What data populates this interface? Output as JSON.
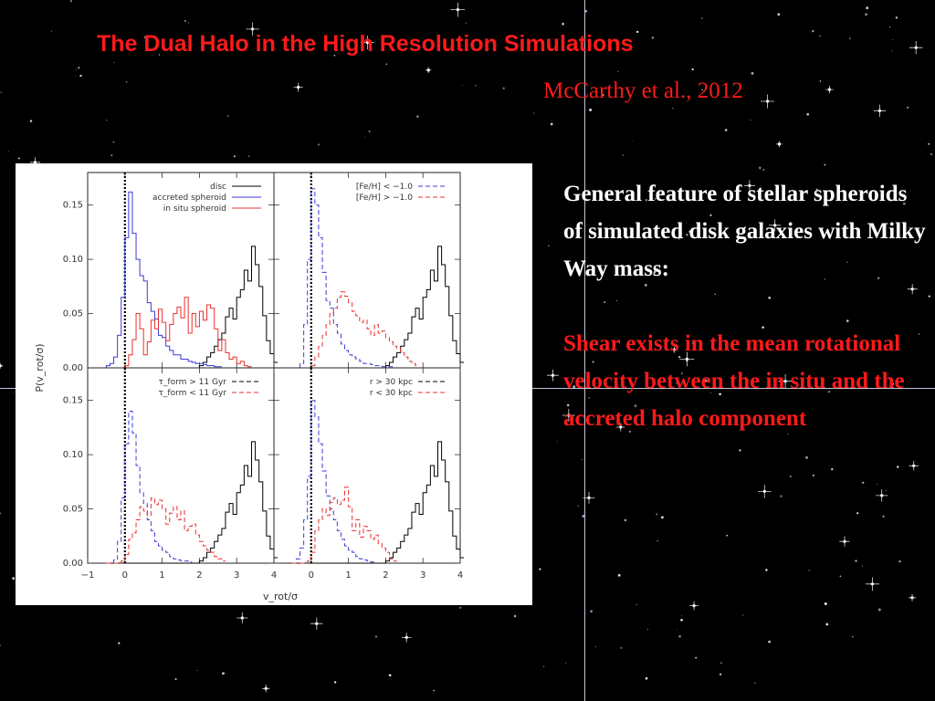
{
  "slide": {
    "title": "The Dual Halo in the High Resolution Simulations",
    "citation": "McCarthy et al., 2012",
    "paragraph1": "General feature of stellar spheroids of simulated disk galaxies with Milky Way mass:",
    "paragraph2": "Shear exists in the mean rotational velocity between the in situ and the accreted halo component"
  },
  "colors": {
    "accent": "#ff1a1a",
    "background": "#000000",
    "black_line": "#000000",
    "blue_line": "#3b3bd6",
    "red_line": "#e83030"
  },
  "chart_data": {
    "type": "histogram",
    "xlabel": "v_rot/σ",
    "ylabel": "P(v_rot/σ)",
    "xlim": [
      -1,
      4
    ],
    "ylim": [
      0,
      0.18
    ],
    "xticks": [
      "−1",
      "0",
      "1",
      "2",
      "3",
      "4"
    ],
    "yticks": [
      "0.00",
      "0.05",
      "0.10",
      "0.15"
    ],
    "bin_width": 0.1,
    "bin_start": -0.5,
    "reference_line_x": 0,
    "panels": [
      {
        "position": "top-left",
        "legend": [
          {
            "name": "disc",
            "style": "solid",
            "color": "black"
          },
          {
            "name": "accreted spheroid",
            "style": "solid",
            "color": "blue"
          },
          {
            "name": "in situ spheroid",
            "style": "solid",
            "color": "red"
          }
        ],
        "series": [
          {
            "name": "disc",
            "style": "solid",
            "color": "black",
            "values": [
              0,
              0,
              0,
              0,
              0,
              0,
              0,
              0,
              0,
              0,
              0,
              0,
              0,
              0,
              0,
              0,
              0,
              0,
              0,
              0,
              0,
              0,
              0,
              0,
              0,
              0.002,
              0.005,
              0.01,
              0.014,
              0.02,
              0.026,
              0.032,
              0.047,
              0.055,
              0.045,
              0.065,
              0.072,
              0.09,
              0.08,
              0.112,
              0.095,
              0.075,
              0.048,
              0.025,
              0.013,
              0.005
            ]
          },
          {
            "name": "accreted spheroid",
            "style": "solid",
            "color": "blue",
            "values": [
              0.002,
              0.004,
              0.01,
              0.03,
              0.065,
              0.12,
              0.162,
              0.124,
              0.1,
              0.085,
              0.08,
              0.06,
              0.052,
              0.045,
              0.03,
              0.028,
              0.02,
              0.016,
              0.012,
              0.012,
              0.008,
              0.008,
              0.006,
              0.005,
              0.004,
              0.004,
              0.003,
              0.002,
              0.002,
              0.001,
              0.001
            ]
          },
          {
            "name": "in situ spheroid",
            "style": "solid",
            "color": "red",
            "values": [
              0,
              0,
              0,
              0,
              0,
              0.002,
              0.012,
              0.026,
              0.05,
              0.036,
              0.012,
              0.024,
              0.044,
              0.036,
              0.054,
              0.042,
              0.025,
              0.04,
              0.05,
              0.056,
              0.046,
              0.065,
              0.032,
              0.05,
              0.038,
              0.052,
              0.044,
              0.058,
              0.055,
              0.036,
              0.016,
              0.026,
              0.014,
              0.008,
              0.01,
              0.004,
              0.006,
              0.002,
              0.001
            ]
          }
        ]
      },
      {
        "position": "top-right",
        "legend": [
          {
            "name": "[Fe/H] < −1.0",
            "style": "dashed",
            "color": "blue"
          },
          {
            "name": "[Fe/H] > −1.0",
            "style": "dashed",
            "color": "red"
          }
        ],
        "series": [
          {
            "name": "disc",
            "style": "solid",
            "color": "black",
            "values": [
              0,
              0,
              0,
              0,
              0,
              0,
              0,
              0,
              0,
              0,
              0,
              0,
              0,
              0,
              0,
              0,
              0,
              0,
              0,
              0,
              0,
              0,
              0,
              0,
              0,
              0.002,
              0.005,
              0.01,
              0.014,
              0.02,
              0.026,
              0.032,
              0.047,
              0.055,
              0.045,
              0.065,
              0.072,
              0.09,
              0.08,
              0.112,
              0.095,
              0.075,
              0.048,
              0.025,
              0.013,
              0.005
            ]
          },
          {
            "name": "[Fe/H] < −1.0",
            "style": "dashed",
            "color": "blue",
            "values": [
              0,
              0,
              0.004,
              0.04,
              0.1,
              0.165,
              0.15,
              0.12,
              0.088,
              0.062,
              0.055,
              0.04,
              0.032,
              0.022,
              0.016,
              0.012,
              0.01,
              0.008,
              0.006,
              0.004,
              0.004,
              0.003,
              0.002,
              0.002,
              0.001,
              0.001,
              0.001
            ]
          },
          {
            "name": "[Fe/H] > −1.0",
            "style": "dashed",
            "color": "red",
            "values": [
              0,
              0,
              0,
              0,
              0,
              0.002,
              0.01,
              0.02,
              0.03,
              0.04,
              0.05,
              0.055,
              0.065,
              0.07,
              0.066,
              0.06,
              0.052,
              0.048,
              0.042,
              0.044,
              0.036,
              0.03,
              0.04,
              0.032,
              0.034,
              0.028,
              0.024,
              0.02,
              0.018,
              0.014,
              0.01,
              0.006,
              0.004,
              0.002
            ]
          }
        ]
      },
      {
        "position": "bottom-left",
        "legend": [
          {
            "name": "τ_form > 11 Gyr",
            "style": "dashed",
            "color": "black"
          },
          {
            "name": "τ_form < 11 Gyr",
            "style": "dashed",
            "color": "red"
          }
        ],
        "series": [
          {
            "name": "disc",
            "style": "solid",
            "color": "black",
            "values": [
              0,
              0,
              0,
              0,
              0,
              0,
              0,
              0,
              0,
              0,
              0,
              0,
              0,
              0,
              0,
              0,
              0,
              0,
              0,
              0,
              0,
              0,
              0,
              0,
              0,
              0.002,
              0.005,
              0.01,
              0.014,
              0.02,
              0.026,
              0.032,
              0.047,
              0.055,
              0.045,
              0.065,
              0.072,
              0.09,
              0.08,
              0.112,
              0.095,
              0.075,
              0.048,
              0.025,
              0.013,
              0.005
            ]
          },
          {
            "name": "τ_form > 11 Gyr",
            "style": "dashed",
            "color": "blue",
            "values": [
              0,
              0,
              0.003,
              0.02,
              0.06,
              0.11,
              0.14,
              0.12,
              0.09,
              0.065,
              0.055,
              0.04,
              0.03,
              0.02,
              0.016,
              0.012,
              0.01,
              0.006,
              0.004,
              0.003,
              0.002,
              0.002,
              0.001
            ]
          },
          {
            "name": "τ_form < 11 Gyr",
            "style": "dashed",
            "color": "red",
            "values": [
              0,
              0,
              0,
              0,
              0.002,
              0.008,
              0.022,
              0.028,
              0.04,
              0.052,
              0.048,
              0.044,
              0.06,
              0.054,
              0.058,
              0.05,
              0.036,
              0.046,
              0.052,
              0.04,
              0.048,
              0.03,
              0.034,
              0.036,
              0.026,
              0.02,
              0.016,
              0.012,
              0.01,
              0.006,
              0.004,
              0.002
            ]
          }
        ]
      },
      {
        "position": "bottom-right",
        "legend": [
          {
            "name": "r > 30 kpc",
            "style": "dashed",
            "color": "black"
          },
          {
            "name": "r < 30 kpc",
            "style": "dashed",
            "color": "red"
          }
        ],
        "series": [
          {
            "name": "disc",
            "style": "solid",
            "color": "black",
            "values": [
              0,
              0,
              0,
              0,
              0,
              0,
              0,
              0,
              0,
              0,
              0,
              0,
              0,
              0,
              0,
              0,
              0,
              0,
              0,
              0,
              0,
              0,
              0,
              0,
              0,
              0.002,
              0.005,
              0.01,
              0.014,
              0.02,
              0.026,
              0.032,
              0.047,
              0.055,
              0.045,
              0.065,
              0.072,
              0.09,
              0.08,
              0.112,
              0.095,
              0.075,
              0.048,
              0.025,
              0.013,
              0.005
            ]
          },
          {
            "name": "r > 30 kpc",
            "style": "dashed",
            "color": "blue",
            "values": [
              0,
              0.004,
              0.014,
              0.04,
              0.08,
              0.15,
              0.135,
              0.11,
              0.085,
              0.062,
              0.05,
              0.04,
              0.03,
              0.022,
              0.016,
              0.012,
              0.01,
              0.006,
              0.004,
              0.003,
              0.002,
              0.001
            ]
          },
          {
            "name": "r < 30 kpc",
            "style": "dashed",
            "color": "red",
            "values": [
              0,
              0,
              0,
              0,
              0.002,
              0.01,
              0.03,
              0.04,
              0.05,
              0.044,
              0.056,
              0.06,
              0.054,
              0.058,
              0.07,
              0.052,
              0.03,
              0.04,
              0.024,
              0.034,
              0.03,
              0.022,
              0.026,
              0.018,
              0.014,
              0.01,
              0.004,
              0.002
            ]
          }
        ]
      }
    ]
  }
}
